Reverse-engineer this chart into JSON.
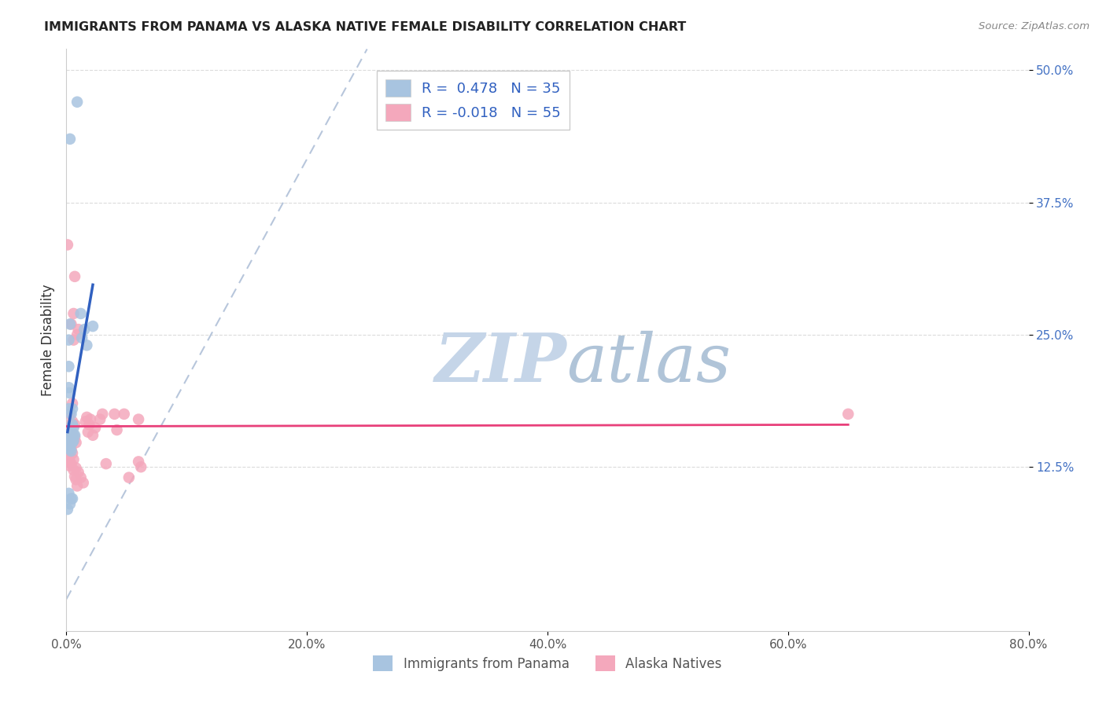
{
  "title": "IMMIGRANTS FROM PANAMA VS ALASKA NATIVE FEMALE DISABILITY CORRELATION CHART",
  "source": "Source: ZipAtlas.com",
  "ylabel": "Female Disability",
  "xlabel_ticks": [
    "0.0%",
    "20.0%",
    "40.0%",
    "60.0%",
    "80.0%"
  ],
  "xlabel_vals": [
    0.0,
    20.0,
    40.0,
    60.0,
    80.0
  ],
  "ylabel_ticks": [
    "12.5%",
    "25.0%",
    "37.5%",
    "50.0%"
  ],
  "ylabel_vals": [
    12.5,
    25.0,
    37.5,
    50.0
  ],
  "xlim": [
    0.0,
    80.0
  ],
  "ylim": [
    -3.0,
    52.0
  ],
  "R_blue": 0.478,
  "N_blue": 35,
  "R_pink": -0.018,
  "N_pink": 55,
  "blue_color": "#a8c4e0",
  "pink_color": "#f4a8bc",
  "blue_line_color": "#3060c0",
  "pink_line_color": "#e8407a",
  "dashed_line_color": "#b0c0d8",
  "blue_scatter": [
    [
      0.3,
      43.5
    ],
    [
      0.9,
      47.0
    ],
    [
      0.2,
      18.0
    ],
    [
      0.2,
      22.0
    ],
    [
      0.2,
      24.5
    ],
    [
      0.3,
      26.0
    ],
    [
      0.2,
      20.0
    ],
    [
      0.25,
      19.5
    ],
    [
      0.5,
      18.0
    ],
    [
      0.4,
      17.5
    ],
    [
      0.5,
      16.5
    ],
    [
      0.6,
      16.2
    ],
    [
      0.4,
      15.8
    ],
    [
      0.3,
      15.5
    ],
    [
      0.5,
      15.5
    ],
    [
      0.6,
      15.5
    ],
    [
      0.7,
      15.5
    ],
    [
      0.3,
      15.2
    ],
    [
      0.4,
      15.2
    ],
    [
      0.6,
      15.0
    ],
    [
      0.5,
      14.8
    ],
    [
      0.2,
      14.8
    ],
    [
      0.1,
      14.5
    ],
    [
      0.3,
      14.2
    ],
    [
      0.4,
      14.0
    ],
    [
      0.2,
      10.0
    ],
    [
      0.4,
      9.5
    ],
    [
      0.5,
      9.5
    ],
    [
      0.3,
      9.0
    ],
    [
      0.1,
      8.5
    ],
    [
      1.2,
      27.0
    ],
    [
      1.5,
      25.5
    ],
    [
      1.3,
      24.7
    ],
    [
      1.7,
      24.0
    ],
    [
      2.2,
      25.8
    ]
  ],
  "pink_scatter": [
    [
      0.1,
      33.5
    ],
    [
      0.7,
      30.5
    ],
    [
      0.6,
      27.0
    ],
    [
      0.4,
      26.0
    ],
    [
      1.0,
      25.5
    ],
    [
      0.9,
      25.0
    ],
    [
      0.6,
      24.5
    ],
    [
      0.5,
      18.5
    ],
    [
      0.3,
      17.5
    ],
    [
      0.5,
      16.8
    ],
    [
      0.7,
      16.5
    ],
    [
      0.4,
      16.3
    ],
    [
      0.3,
      16.0
    ],
    [
      0.5,
      15.7
    ],
    [
      0.2,
      15.4
    ],
    [
      0.7,
      15.3
    ],
    [
      0.4,
      15.2
    ],
    [
      0.6,
      15.0
    ],
    [
      0.8,
      14.8
    ],
    [
      0.3,
      14.7
    ],
    [
      0.2,
      14.5
    ],
    [
      0.4,
      14.2
    ],
    [
      0.1,
      14.0
    ],
    [
      0.5,
      13.8
    ],
    [
      0.3,
      13.5
    ],
    [
      0.6,
      13.2
    ],
    [
      0.2,
      13.0
    ],
    [
      0.4,
      12.8
    ],
    [
      0.3,
      12.6
    ],
    [
      0.8,
      12.4
    ],
    [
      0.6,
      12.2
    ],
    [
      1.0,
      12.0
    ],
    [
      0.7,
      11.6
    ],
    [
      1.2,
      11.5
    ],
    [
      0.8,
      11.3
    ],
    [
      1.4,
      11.0
    ],
    [
      0.9,
      10.7
    ],
    [
      1.7,
      17.2
    ],
    [
      2.0,
      17.0
    ],
    [
      1.6,
      16.8
    ],
    [
      1.9,
      16.5
    ],
    [
      2.4,
      16.2
    ],
    [
      1.8,
      15.8
    ],
    [
      2.2,
      15.5
    ],
    [
      3.0,
      17.5
    ],
    [
      2.8,
      17.0
    ],
    [
      3.3,
      12.8
    ],
    [
      4.0,
      17.5
    ],
    [
      4.2,
      16.0
    ],
    [
      4.8,
      17.5
    ],
    [
      5.2,
      11.5
    ],
    [
      6.0,
      17.0
    ],
    [
      6.0,
      13.0
    ],
    [
      6.2,
      12.5
    ],
    [
      65.0,
      17.5
    ]
  ],
  "watermark_left": "ZIP",
  "watermark_right": "atlas",
  "watermark_color_left": "#c8d8ec",
  "watermark_color_right": "#b8c8dc",
  "background_color": "#ffffff",
  "grid_color": "#d8d8d8"
}
